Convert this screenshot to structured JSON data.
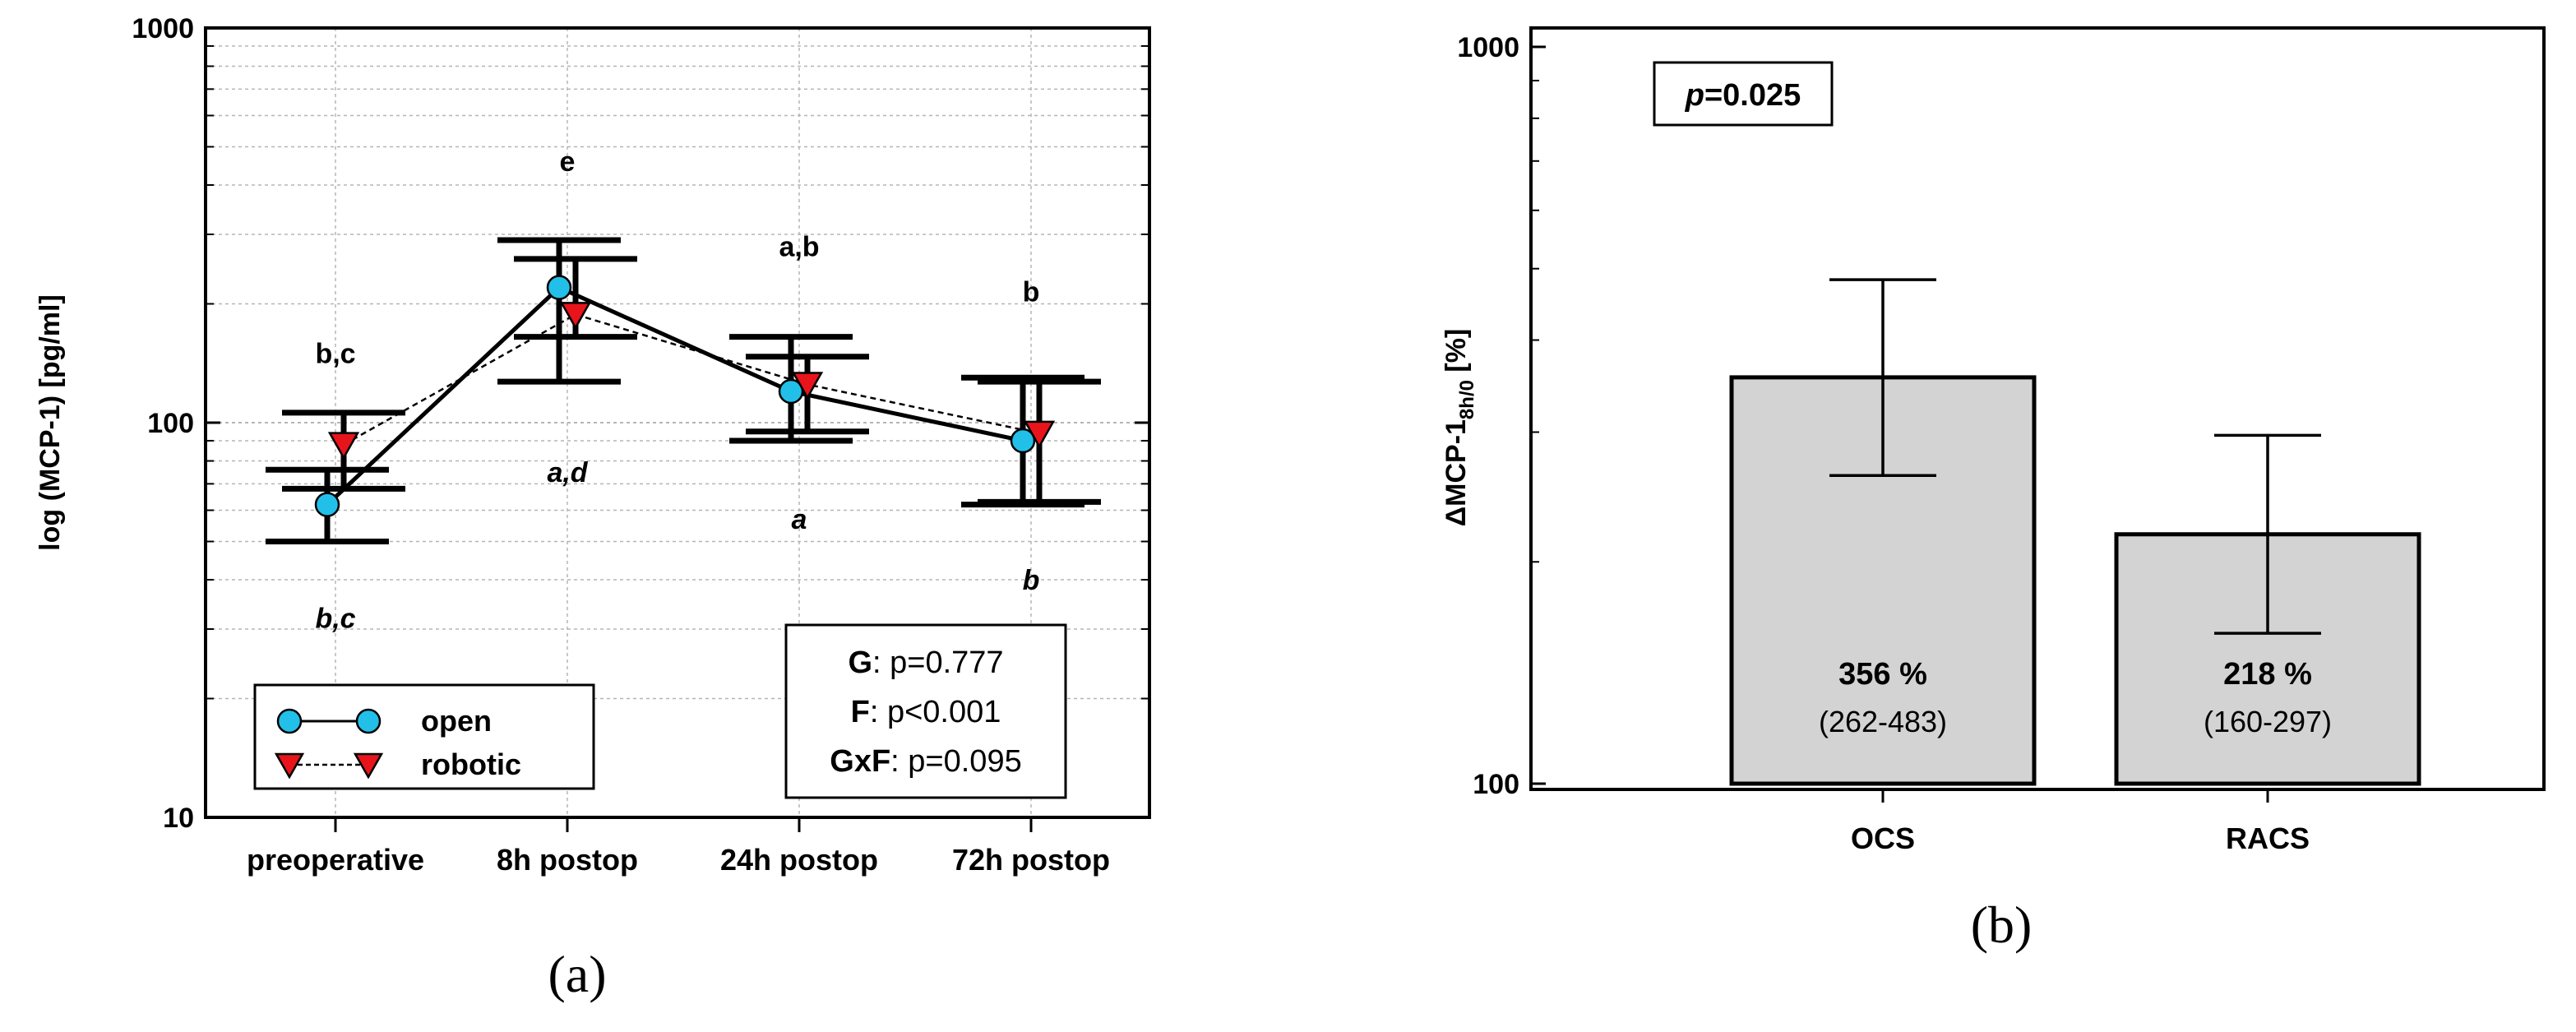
{
  "panel_a_label": "(a)",
  "panel_b_label": "(b)",
  "chart_data": [
    {
      "type": "line",
      "ylabel": "log (MCP-1) [pg/ml]",
      "xlabel": "",
      "yscale": "log",
      "ylim": [
        10,
        1000
      ],
      "yticks": [
        "10",
        "100",
        "1000"
      ],
      "grid": true,
      "categories": [
        "preoperative",
        "8h postop",
        "24h postop",
        "72h postop"
      ],
      "series": [
        {
          "name": "open",
          "color": "#22c0e8",
          "marker": "circle",
          "line": "solid",
          "values": [
            62,
            220,
            120,
            90
          ],
          "error": [
            [
              50,
              76
            ],
            [
              127,
              290
            ],
            [
              90,
              165
            ],
            [
              62,
              130
            ]
          ]
        },
        {
          "name": "robotic",
          "color": "#e8141c",
          "marker": "triangle-down",
          "line": "dashed",
          "values": [
            88,
            188,
            125,
            94
          ],
          "error": [
            [
              68,
              106
            ],
            [
              165,
              260
            ],
            [
              95,
              147
            ],
            [
              63,
              127
            ]
          ]
        }
      ],
      "annotations": [
        {
          "text": "b,c",
          "x": 0,
          "y": 150,
          "italic": false
        },
        {
          "text": "b,c",
          "x": 0,
          "y": 32,
          "italic": true
        },
        {
          "text": "e",
          "x": 1,
          "y": 460,
          "italic": false
        },
        {
          "text": "a,d",
          "x": 1,
          "y": 75,
          "italic": true
        },
        {
          "text": "a,b",
          "x": 2,
          "y": 280,
          "italic": false
        },
        {
          "text": "a",
          "x": 2,
          "y": 57,
          "italic": true
        },
        {
          "text": "b",
          "x": 3,
          "y": 215,
          "italic": false
        },
        {
          "text": "b",
          "x": 3,
          "y": 40,
          "italic": true
        }
      ],
      "legend": {
        "placement": "bottom-left",
        "entries": [
          "open",
          "robotic"
        ]
      },
      "stats_box": {
        "placement": "bottom-right",
        "lines": [
          {
            "label": "G",
            "text": ": p=0.777"
          },
          {
            "label": "F",
            "text": ": p<0.001"
          },
          {
            "label": "GxF",
            "text": ": p=0.095"
          }
        ]
      }
    },
    {
      "type": "bar",
      "ylabel_main": "ΔMCP-1",
      "ylabel_sub": "8h/0",
      "ylabel_unit": " [%]",
      "xlabel": "",
      "yscale": "log",
      "ylim": [
        100,
        1000
      ],
      "yticks": [
        "100",
        "1000"
      ],
      "grid": false,
      "categories": [
        "OCS",
        "RACS"
      ],
      "values": [
        356,
        218
      ],
      "error": [
        [
          262,
          483
        ],
        [
          160,
          297
        ]
      ],
      "bar_color": "#d3d3d3",
      "bar_labels": [
        "356 %",
        "218 %"
      ],
      "bar_ranges": [
        "(262-483)",
        "(160-297)"
      ],
      "pvalue": {
        "label": "p",
        "text": "=0.025",
        "placement": "top-left"
      }
    }
  ]
}
